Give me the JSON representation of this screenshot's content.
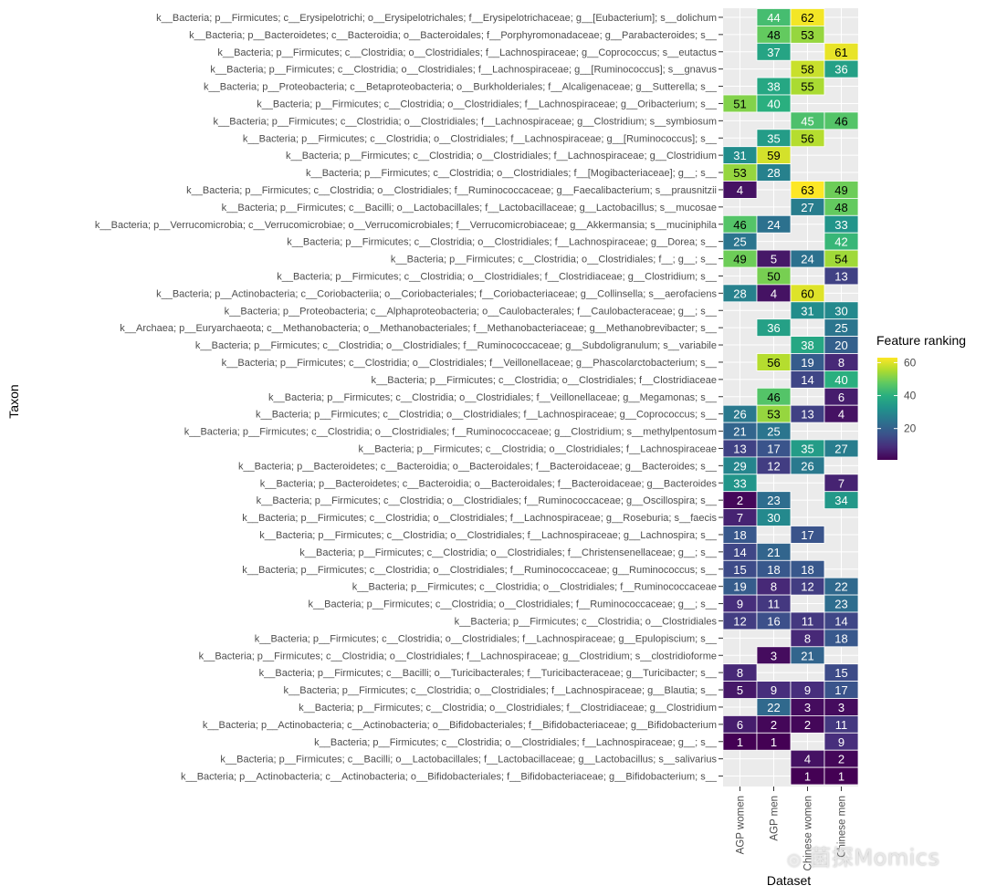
{
  "chart_data": {
    "type": "heatmap",
    "title": "",
    "xlabel": "Dataset",
    "ylabel": "Taxon",
    "datasets": [
      "AGP women",
      "AGP men",
      "Chinese women",
      "Chinese men"
    ],
    "legend": {
      "title": "Feature ranking",
      "ticks": [
        20,
        40,
        60
      ],
      "range": [
        1,
        63
      ],
      "colormap": "viridis",
      "placement": "right"
    },
    "grid": true,
    "taxa": [
      "k__Bacteria; p__Firmicutes; c__Erysipelotrichi; o__Erysipelotrichales; f__Erysipelotrichaceae; g__[Eubacterium]; s__dolichum",
      "k__Bacteria; p__Bacteroidetes; c__Bacteroidia; o__Bacteroidales; f__Porphyromonadaceae; g__Parabacteroides; s__",
      "k__Bacteria; p__Firmicutes; c__Clostridia; o__Clostridiales; f__Lachnospiraceae; g__Coprococcus; s__eutactus",
      "k__Bacteria; p__Firmicutes; c__Clostridia; o__Clostridiales; f__Lachnospiraceae; g__[Ruminococcus]; s__gnavus",
      "k__Bacteria; p__Proteobacteria; c__Betaproteobacteria; o__Burkholderiales; f__Alcaligenaceae; g__Sutterella; s__",
      "k__Bacteria; p__Firmicutes; c__Clostridia; o__Clostridiales; f__Lachnospiraceae; g__Oribacterium; s__",
      "k__Bacteria; p__Firmicutes; c__Clostridia; o__Clostridiales; f__Lachnospiraceae; g__Clostridium; s__symbiosum",
      "k__Bacteria; p__Firmicutes; c__Clostridia; o__Clostridiales; f__Lachnospiraceae; g__[Ruminococcus]; s__",
      "k__Bacteria; p__Firmicutes; c__Clostridia; o__Clostridiales; f__Lachnospiraceae; g__Clostridium",
      "k__Bacteria; p__Firmicutes; c__Clostridia; o__Clostridiales; f__[Mogibacteriaceae]; g__; s__",
      "k__Bacteria; p__Firmicutes; c__Clostridia; o__Clostridiales; f__Ruminococcaceae; g__Faecalibacterium; s__prausnitzii",
      "k__Bacteria; p__Firmicutes; c__Bacilli; o__Lactobacillales; f__Lactobacillaceae; g__Lactobacillus; s__mucosae",
      "k__Bacteria; p__Verrucomicrobia; c__Verrucomicrobiae; o__Verrucomicrobiales; f__Verrucomicrobiaceae; g__Akkermansia; s__muciniphila",
      "k__Bacteria; p__Firmicutes; c__Clostridia; o__Clostridiales; f__Lachnospiraceae; g__Dorea; s__",
      "k__Bacteria; p__Firmicutes; c__Clostridia; o__Clostridiales; f__; g__; s__",
      "k__Bacteria; p__Firmicutes; c__Clostridia; o__Clostridiales; f__Clostridiaceae; g__Clostridium; s__",
      "k__Bacteria; p__Actinobacteria; c__Coriobacteriia; o__Coriobacteriales; f__Coriobacteriaceae; g__Collinsella; s__aerofaciens",
      "k__Bacteria; p__Proteobacteria; c__Alphaproteobacteria; o__Caulobacterales; f__Caulobacteraceae; g__; s__",
      "k__Archaea; p__Euryarchaeota; c__Methanobacteria; o__Methanobacteriales; f__Methanobacteriaceae; g__Methanobrevibacter; s__",
      "k__Bacteria; p__Firmicutes; c__Clostridia; o__Clostridiales; f__Ruminococcaceae; g__Subdoligranulum; s__variabile",
      "k__Bacteria; p__Firmicutes; c__Clostridia; o__Clostridiales; f__Veillonellaceae; g__Phascolarctobacterium; s__",
      "k__Bacteria; p__Firmicutes; c__Clostridia; o__Clostridiales; f__Clostridiaceae",
      "k__Bacteria; p__Firmicutes; c__Clostridia; o__Clostridiales; f__Veillonellaceae; g__Megamonas; s__",
      "k__Bacteria; p__Firmicutes; c__Clostridia; o__Clostridiales; f__Lachnospiraceae; g__Coprococcus; s__",
      "k__Bacteria; p__Firmicutes; c__Clostridia; o__Clostridiales; f__Ruminococcaceae; g__Clostridium; s__methylpentosum",
      "k__Bacteria; p__Firmicutes; c__Clostridia; o__Clostridiales; f__Lachnospiraceae",
      "k__Bacteria; p__Bacteroidetes; c__Bacteroidia; o__Bacteroidales; f__Bacteroidaceae; g__Bacteroides; s__",
      "k__Bacteria; p__Bacteroidetes; c__Bacteroidia; o__Bacteroidales; f__Bacteroidaceae; g__Bacteroides",
      "k__Bacteria; p__Firmicutes; c__Clostridia; o__Clostridiales; f__Ruminococcaceae; g__Oscillospira; s__",
      "k__Bacteria; p__Firmicutes; c__Clostridia; o__Clostridiales; f__Lachnospiraceae; g__Roseburia; s__faecis",
      "k__Bacteria; p__Firmicutes; c__Clostridia; o__Clostridiales; f__Lachnospiraceae; g__Lachnospira; s__",
      "k__Bacteria; p__Firmicutes; c__Clostridia; o__Clostridiales; f__Christensenellaceae; g__; s__",
      "k__Bacteria; p__Firmicutes; c__Clostridia; o__Clostridiales; f__Ruminococcaceae; g__Ruminococcus; s__",
      "k__Bacteria; p__Firmicutes; c__Clostridia; o__Clostridiales; f__Ruminococcaceae",
      "k__Bacteria; p__Firmicutes; c__Clostridia; o__Clostridiales; f__Ruminococcaceae; g__; s__",
      "k__Bacteria; p__Firmicutes; c__Clostridia; o__Clostridiales",
      "k__Bacteria; p__Firmicutes; c__Clostridia; o__Clostridiales; f__Lachnospiraceae; g__Epulopiscium; s__",
      "k__Bacteria; p__Firmicutes; c__Clostridia; o__Clostridiales; f__Lachnospiraceae; g__Clostridium; s__clostridioforme",
      "k__Bacteria; p__Firmicutes; c__Bacilli; o__Turicibacterales; f__Turicibacteraceae; g__Turicibacter; s__",
      "k__Bacteria; p__Firmicutes; c__Clostridia; o__Clostridiales; f__Lachnospiraceae; g__Blautia; s__",
      "k__Bacteria; p__Firmicutes; c__Clostridia; o__Clostridiales; f__Clostridiaceae; g__Clostridium",
      "k__Bacteria; p__Actinobacteria; c__Actinobacteria; o__Bifidobacteriales; f__Bifidobacteriaceae; g__Bifidobacterium",
      "k__Bacteria; p__Firmicutes; c__Clostridia; o__Clostridiales; f__Lachnospiraceae; g__; s__",
      "k__Bacteria; p__Firmicutes; c__Bacilli; o__Lactobacillales; f__Lactobacillaceae; g__Lactobacillus; s__salivarius",
      "k__Bacteria; p__Actinobacteria; c__Actinobacteria; o__Bifidobacteriales; f__Bifidobacteriaceae; g__Bifidobacterium; s__"
    ],
    "values": [
      [
        null,
        44,
        62,
        null
      ],
      [
        null,
        48,
        53,
        null
      ],
      [
        null,
        37,
        null,
        61
      ],
      [
        null,
        null,
        58,
        36
      ],
      [
        null,
        38,
        55,
        null
      ],
      [
        51,
        40,
        null,
        null
      ],
      [
        null,
        null,
        45,
        46
      ],
      [
        null,
        35,
        56,
        null
      ],
      [
        31,
        59,
        null,
        null
      ],
      [
        53,
        28,
        null,
        null
      ],
      [
        4,
        null,
        63,
        49
      ],
      [
        null,
        null,
        27,
        48
      ],
      [
        46,
        24,
        null,
        33
      ],
      [
        25,
        null,
        null,
        42
      ],
      [
        49,
        5,
        24,
        54
      ],
      [
        null,
        50,
        null,
        13
      ],
      [
        28,
        4,
        60,
        null
      ],
      [
        null,
        null,
        31,
        30
      ],
      [
        null,
        36,
        null,
        25
      ],
      [
        null,
        null,
        38,
        20
      ],
      [
        null,
        56,
        19,
        8
      ],
      [
        null,
        null,
        14,
        40
      ],
      [
        null,
        46,
        null,
        6
      ],
      [
        26,
        53,
        13,
        4
      ],
      [
        21,
        25,
        null,
        null
      ],
      [
        13,
        17,
        35,
        27
      ],
      [
        29,
        12,
        26,
        null
      ],
      [
        33,
        null,
        null,
        7
      ],
      [
        2,
        23,
        null,
        34
      ],
      [
        7,
        30,
        null,
        null
      ],
      [
        18,
        null,
        17,
        null
      ],
      [
        14,
        21,
        null,
        null
      ],
      [
        15,
        18,
        18,
        null
      ],
      [
        19,
        8,
        12,
        22
      ],
      [
        9,
        11,
        null,
        23
      ],
      [
        12,
        16,
        11,
        14
      ],
      [
        null,
        null,
        8,
        18
      ],
      [
        null,
        3,
        21,
        null
      ],
      [
        8,
        null,
        null,
        15
      ],
      [
        5,
        9,
        9,
        17
      ],
      [
        null,
        22,
        3,
        3
      ],
      [
        6,
        2,
        2,
        11
      ],
      [
        1,
        1,
        null,
        9
      ],
      [
        null,
        null,
        4,
        2
      ],
      [
        null,
        null,
        1,
        1
      ]
    ]
  },
  "watermark": {
    "text": "菌探Momics",
    "icon": "wechat-icon"
  }
}
